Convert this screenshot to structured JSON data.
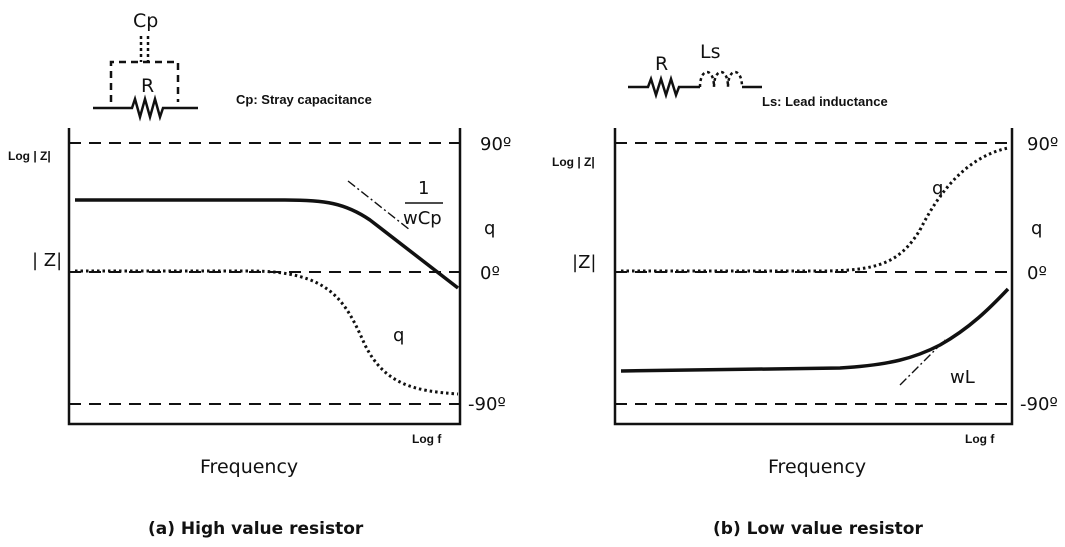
{
  "left": {
    "circuit": {
      "cap_label": "Cp",
      "res_label": "R",
      "note": "Cp: Stray capacitance"
    },
    "ylabel": "Log | Z|",
    "z_label": "| Z|",
    "right_90": "90º",
    "right_q": "q",
    "right_0": "0º",
    "right_m90": "-90º",
    "asym_num": "1",
    "asym_den": "wCp",
    "curve_q": "q",
    "xlabel_small": "Log  f",
    "xlabel": "Frequency",
    "caption": "(a) High value resistor"
  },
  "right": {
    "circuit": {
      "res_label": "R",
      "ind_label": "Ls",
      "note": "Ls: Lead inductance"
    },
    "ylabel": "Log | Z|",
    "z_label": "|Z|",
    "right_90": "90º",
    "right_q": "q",
    "right_0": "0º",
    "right_m90": "-90º",
    "curve_q": "q",
    "asym_label": "wL",
    "xlabel_small": "Log  f",
    "xlabel": "Frequency",
    "caption": "(b) Low value resistor"
  },
  "colors": {
    "ink": "#111111",
    "background": "#ffffff"
  }
}
